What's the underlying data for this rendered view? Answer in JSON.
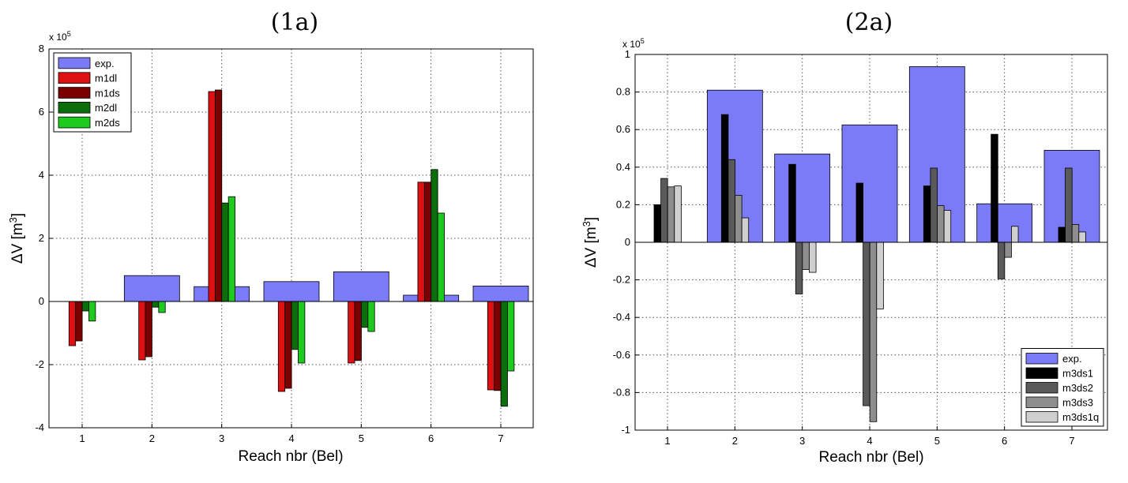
{
  "chart_data": [
    {
      "type": "bar",
      "title": "(1a)",
      "xlabel": "Reach nbr (Bel)",
      "ylabel": "ΔV [m³]",
      "ylabel_main": "ΔV [m",
      "ylabel_sup": "3",
      "ylabel_end": "]",
      "scale_label": "x 10",
      "scale_exp": "5",
      "categories": [
        "1",
        "2",
        "3",
        "4",
        "5",
        "6",
        "7"
      ],
      "ylim": [
        -4,
        8
      ],
      "yticks": [
        "-4",
        "-2",
        "0",
        "2",
        "4",
        "6",
        "8"
      ],
      "grid": true,
      "legend_position": "top-left",
      "series": [
        {
          "name": "exp.",
          "color": "#7b7bf7",
          "values": [
            0,
            0.82,
            0.47,
            0.63,
            0.94,
            0.2,
            0.49
          ]
        },
        {
          "name": "m1dl",
          "color": "#dd1111",
          "values": [
            -1.4,
            -1.85,
            6.65,
            -2.85,
            -1.95,
            3.78,
            -2.8
          ]
        },
        {
          "name": "m1ds",
          "color": "#7a0000",
          "values": [
            -1.25,
            -1.75,
            6.7,
            -2.75,
            -1.87,
            3.78,
            -2.82
          ]
        },
        {
          "name": "m2dl",
          "color": "#0c6d0c",
          "values": [
            -0.3,
            -0.18,
            3.12,
            -1.52,
            -0.82,
            4.18,
            -3.32
          ]
        },
        {
          "name": "m2ds",
          "color": "#1fca1f",
          "values": [
            -0.62,
            -0.35,
            3.32,
            -1.95,
            -0.95,
            2.8,
            -2.2
          ]
        }
      ]
    },
    {
      "type": "bar",
      "title": "(2a)",
      "xlabel": "Reach nbr (Bel)",
      "ylabel": "ΔV [m³]",
      "ylabel_main": "ΔV [m",
      "ylabel_sup": "3",
      "ylabel_end": "]",
      "scale_label": "x 10",
      "scale_exp": "5",
      "categories": [
        "1",
        "2",
        "3",
        "4",
        "5",
        "6",
        "7"
      ],
      "ylim": [
        -1,
        1
      ],
      "yticks": [
        "-1",
        "-0.8",
        "-0.6",
        "-0.4",
        "-0.2",
        "0",
        "0.2",
        "0.4",
        "0.6",
        "0.8",
        "1"
      ],
      "grid": true,
      "legend_position": "bottom-right",
      "series": [
        {
          "name": "exp.",
          "color": "#7b7bf7",
          "values": [
            0,
            0.81,
            0.47,
            0.625,
            0.935,
            0.205,
            0.49
          ]
        },
        {
          "name": "m3ds1",
          "color": "#000000",
          "values": [
            0.2,
            0.68,
            0.415,
            0.315,
            0.3,
            0.575,
            0.08
          ]
        },
        {
          "name": "m3ds2",
          "color": "#5a5a5a",
          "values": [
            0.34,
            0.44,
            -0.275,
            -0.87,
            0.395,
            -0.195,
            0.395
          ]
        },
        {
          "name": "m3ds3",
          "color": "#8e8e8e",
          "values": [
            0.295,
            0.25,
            -0.145,
            -0.955,
            0.195,
            -0.08,
            0.095
          ]
        },
        {
          "name": "m3ds1q",
          "color": "#cfcfcf",
          "values": [
            0.3,
            0.13,
            -0.16,
            -0.355,
            0.17,
            0.085,
            0.055
          ]
        }
      ]
    }
  ]
}
